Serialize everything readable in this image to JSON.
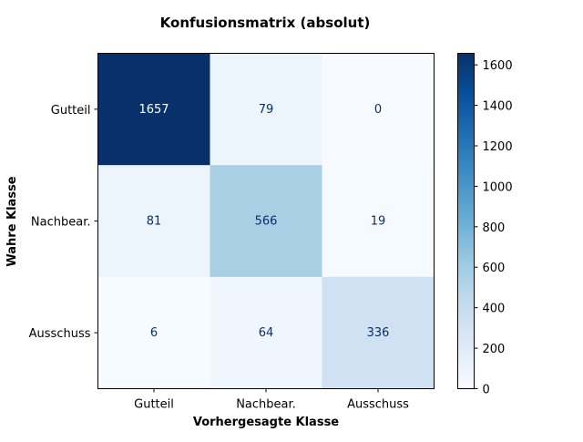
{
  "chart_data": {
    "type": "heatmap",
    "title": "Konfusionsmatrix (absolut)",
    "xlabel": "Vorhergesagte Klasse",
    "ylabel": "Wahre Klasse",
    "x_categories": [
      "Gutteil",
      "Nachbear.",
      "Ausschuss"
    ],
    "y_categories": [
      "Gutteil",
      "Nachbear.",
      "Ausschuss"
    ],
    "values": [
      [
        1657,
        79,
        0
      ],
      [
        81,
        566,
        19
      ],
      [
        6,
        64,
        336
      ]
    ],
    "colorbar": {
      "colormap": "Blues",
      "range": [
        0,
        1657
      ],
      "ticks": [
        0,
        200,
        400,
        600,
        800,
        1000,
        1200,
        1400,
        1600
      ]
    }
  }
}
